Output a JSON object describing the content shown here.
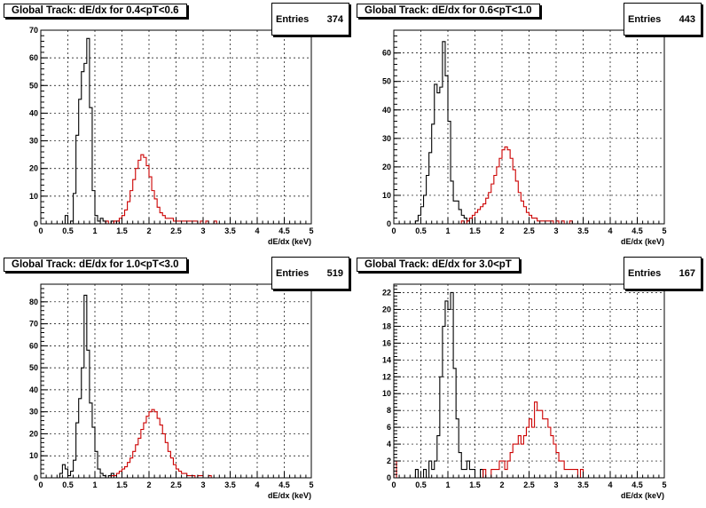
{
  "chart_data": [
    {
      "type": "histogram",
      "title": "Global Track: dE/dx for 0.4<pT<0.6",
      "stats": {
        "label": "Entries",
        "value": "374"
      },
      "xlabel": "dE/dx (keV)",
      "xlim": [
        0,
        5
      ],
      "ylim": [
        0,
        70
      ],
      "xticks": [
        "0",
        "0.5",
        "1",
        "1.5",
        "2",
        "2.5",
        "3",
        "3.5",
        "4",
        "4.5",
        "5"
      ],
      "yticks": [
        0,
        10,
        20,
        30,
        40,
        50,
        60,
        70
      ],
      "grid": true,
      "bin_width": 0.05,
      "series": [
        {
          "color": "#000000",
          "start": 0.45,
          "values": [
            3,
            0,
            1,
            11,
            32,
            45,
            55,
            58,
            67,
            42,
            12,
            3,
            1,
            2,
            1,
            0,
            0,
            1,
            0,
            1
          ]
        },
        {
          "color": "#cc0000",
          "start": 1.0,
          "values": [
            0,
            0,
            0,
            0,
            1,
            0,
            0,
            1,
            1,
            2,
            3,
            5,
            8,
            12,
            16,
            20,
            23,
            25,
            24,
            21,
            17,
            12,
            9,
            6,
            4,
            3,
            2,
            2,
            2,
            1,
            1,
            1,
            1,
            1,
            1,
            1,
            1,
            1,
            0,
            1,
            0,
            1,
            0,
            0,
            1,
            0,
            0,
            0,
            0,
            0,
            0,
            0,
            0,
            0,
            0,
            0,
            0,
            0,
            0,
            0,
            0,
            0,
            0,
            0,
            0,
            0,
            0,
            0,
            0,
            0
          ]
        }
      ]
    },
    {
      "type": "histogram",
      "title": "Global Track: dE/dx for 0.6<pT<1.0",
      "stats": {
        "label": "Entries",
        "value": "443"
      },
      "xlabel": "dE/dx (keV)",
      "xlim": [
        0,
        5
      ],
      "ylim": [
        0,
        68
      ],
      "xticks": [
        "0",
        "0.5",
        "1",
        "1.5",
        "2",
        "2.5",
        "3",
        "3.5",
        "4",
        "4.5",
        "5"
      ],
      "yticks": [
        0,
        10,
        20,
        30,
        40,
        50,
        60
      ],
      "grid": true,
      "bin_width": 0.05,
      "series": [
        {
          "color": "#000000",
          "start": 0.35,
          "values": [
            0,
            1,
            3,
            6,
            10,
            17,
            25,
            35,
            49,
            46,
            48,
            64,
            52,
            36,
            15,
            8,
            8,
            5,
            3,
            2,
            1,
            2
          ]
        },
        {
          "color": "#cc0000",
          "start": 1.0,
          "values": [
            0,
            0,
            0,
            0,
            0,
            1,
            0,
            1,
            2,
            3,
            4,
            5,
            6,
            7,
            9,
            11,
            14,
            17,
            20,
            23,
            26,
            27,
            26,
            23,
            19,
            15,
            11,
            8,
            6,
            4,
            3,
            2,
            2,
            1,
            1,
            1,
            1,
            1,
            1,
            0,
            1,
            0,
            1,
            0,
            0,
            1,
            0,
            0,
            0,
            0,
            0,
            0,
            0,
            0,
            0,
            0,
            0,
            0,
            0,
            0,
            0,
            0,
            0,
            0,
            0,
            0,
            0,
            0,
            0,
            0,
            0,
            0,
            0,
            0,
            0,
            0,
            0,
            0,
            0,
            0
          ]
        }
      ]
    },
    {
      "type": "histogram",
      "title": "Global Track: dE/dx for 1.0<pT<3.0",
      "stats": {
        "label": "Entries",
        "value": "519"
      },
      "xlabel": "dE/dx (keV)",
      "xlim": [
        0,
        5
      ],
      "ylim": [
        0,
        88
      ],
      "xticks": [
        "0",
        "0.5",
        "1",
        "1.5",
        "2",
        "2.5",
        "3",
        "3.5",
        "4",
        "4.5",
        "5"
      ],
      "yticks": [
        0,
        10,
        20,
        30,
        40,
        50,
        60,
        70,
        80
      ],
      "grid": true,
      "bin_width": 0.05,
      "series": [
        {
          "color": "#000000",
          "start": 0.35,
          "values": [
            2,
            6,
            4,
            1,
            3,
            8,
            25,
            36,
            50,
            83,
            58,
            34,
            23,
            12,
            4,
            2,
            1,
            0,
            1,
            2
          ]
        },
        {
          "color": "#cc0000",
          "start": 1.0,
          "values": [
            0,
            0,
            0,
            0,
            0,
            0,
            1,
            1,
            2,
            3,
            4,
            5,
            7,
            9,
            12,
            15,
            18,
            22,
            25,
            28,
            30,
            31,
            30,
            27,
            24,
            20,
            16,
            12,
            9,
            6,
            4,
            3,
            2,
            2,
            1,
            1,
            1,
            0,
            1,
            1,
            0,
            0,
            1,
            0,
            0,
            0,
            0,
            0,
            0,
            0,
            0,
            0,
            0,
            0,
            0,
            0,
            0,
            0,
            0,
            0,
            0,
            0,
            0,
            0,
            0,
            0,
            0,
            0,
            0,
            0,
            0,
            0,
            0,
            0,
            0,
            0,
            0,
            0,
            0,
            0
          ]
        }
      ]
    },
    {
      "type": "histogram",
      "title": "Global Track: dE/dx for 3.0<pT",
      "stats": {
        "label": "Entries",
        "value": "167"
      },
      "xlabel": "dE/dx (keV)",
      "xlim": [
        0,
        5
      ],
      "ylim": [
        0,
        23
      ],
      "xticks": [
        "0",
        "0.5",
        "1",
        "1.5",
        "2",
        "2.5",
        "3",
        "3.5",
        "4",
        "4.5",
        "5"
      ],
      "yticks": [
        0,
        2,
        4,
        6,
        8,
        10,
        12,
        14,
        16,
        18,
        20,
        22
      ],
      "grid": true,
      "bin_width": 0.05,
      "series": [
        {
          "color": "#000000",
          "start": 0.4,
          "values": [
            1,
            0,
            0,
            1,
            0,
            2,
            1,
            2,
            5,
            12,
            18,
            21,
            20,
            22,
            13,
            7,
            3,
            1,
            1,
            2,
            1,
            1,
            0,
            0,
            1
          ]
        },
        {
          "color": "#cc0000",
          "start": 0.0,
          "values": [
            2,
            0,
            0,
            0,
            0,
            0,
            0,
            0,
            0,
            0,
            0,
            0,
            0,
            0,
            0,
            0,
            0,
            0,
            0,
            0,
            0,
            0,
            0,
            0,
            0,
            0,
            0,
            0,
            0,
            0,
            0,
            0,
            0,
            1,
            0,
            0,
            1,
            1,
            1,
            2,
            2,
            1,
            2,
            3,
            4,
            4,
            5,
            4,
            5,
            6,
            7,
            6,
            9,
            8,
            8,
            7,
            7,
            6,
            5,
            4,
            3,
            2,
            2,
            1,
            1,
            1,
            1,
            1,
            0,
            1,
            0,
            0,
            0,
            0,
            0,
            0,
            0,
            0,
            0,
            0,
            0,
            0,
            0,
            0,
            0,
            0,
            0,
            0,
            0,
            0,
            0,
            0,
            0,
            0,
            0,
            0,
            0,
            0,
            0,
            0
          ]
        }
      ]
    }
  ]
}
